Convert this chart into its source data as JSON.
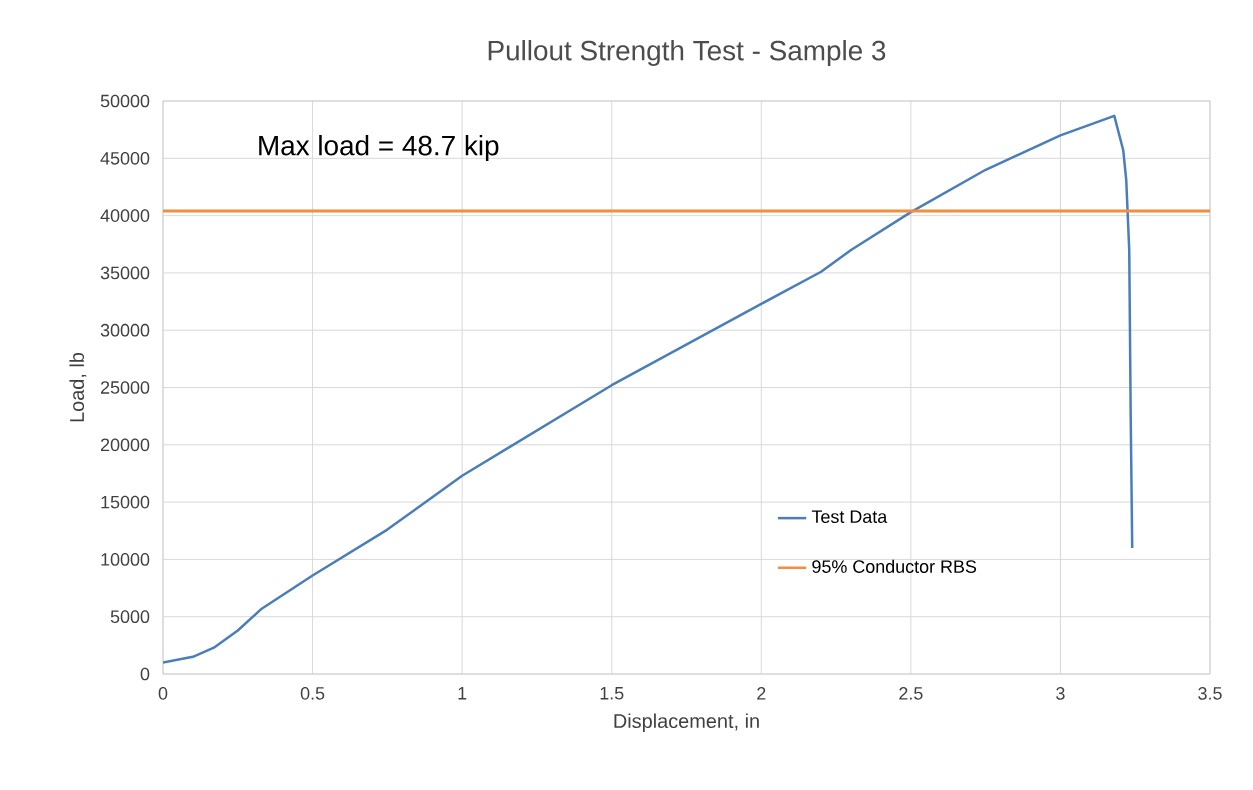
{
  "chart_data": {
    "type": "line",
    "title": "Pullout Strength Test - Sample 3",
    "xlabel": "Displacement, in",
    "ylabel": "Load, lb",
    "xlim": [
      0,
      3.5
    ],
    "xticks": [
      0,
      0.5,
      1,
      1.5,
      2,
      2.5,
      3,
      3.5
    ],
    "ylim": [
      0,
      50000
    ],
    "yticks": [
      0,
      5000,
      10000,
      15000,
      20000,
      25000,
      30000,
      35000,
      40000,
      45000,
      50000
    ],
    "grid": true,
    "legend": "bottom right",
    "marker": "none",
    "line_style": "solid",
    "series": [
      {
        "name": "Test Data",
        "color": "#4a7ebb",
        "x": [
          0,
          0.1,
          0.17,
          0.25,
          0.33,
          0.5,
          0.75,
          1.0,
          1.5,
          2.0,
          2.2,
          2.3,
          2.5,
          2.75,
          3.0,
          3.18,
          3.21,
          3.22,
          3.23,
          3.235,
          3.24
        ],
        "values": [
          1000,
          1500,
          2300,
          3800,
          5700,
          8600,
          12600,
          17300,
          25200,
          32300,
          35100,
          37000,
          40300,
          44000,
          47000,
          48700,
          45700,
          43100,
          37000,
          22200,
          11000
        ]
      }
    ],
    "ref_lines": [
      {
        "axis": "y",
        "value": 40400,
        "label": "95% Conductor RBS",
        "color": "#f28e3c",
        "line_style": "solid"
      }
    ],
    "annotations": [
      "Max load = 48.7 kip"
    ]
  }
}
